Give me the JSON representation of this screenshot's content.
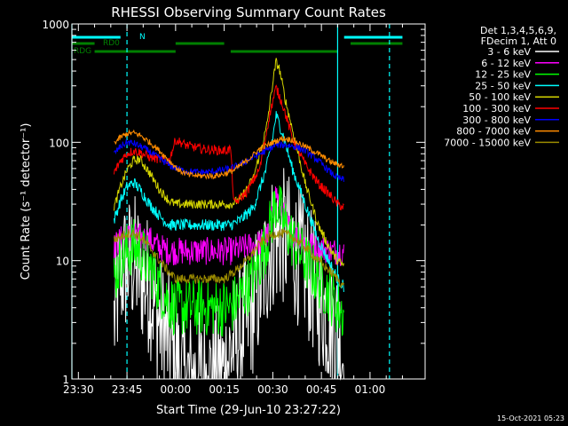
{
  "chart_data": {
    "type": "line",
    "title": "RHESSI Observing Summary Count Rates",
    "xlabel": "Start Time (29-Jun-10 23:27:22)",
    "ylabel": "Count Rate (s⁻¹ detector⁻¹)",
    "y_scale": "log",
    "ylim": [
      1,
      1000
    ],
    "xlim_minutes": [
      -32,
      77
    ],
    "x_ticks": [
      {
        "label": "23:30",
        "minute": -30
      },
      {
        "label": "23:45",
        "minute": -15
      },
      {
        "label": "00:00",
        "minute": 0
      },
      {
        "label": "00:15",
        "minute": 15
      },
      {
        "label": "00:30",
        "minute": 30
      },
      {
        "label": "00:45",
        "minute": 45
      },
      {
        "label": "01:00",
        "minute": 60
      }
    ],
    "y_ticks": [
      1,
      10,
      100,
      1000
    ],
    "y_tick_labels": [
      "1",
      "10",
      "100",
      "1000"
    ],
    "legend_header": [
      "Det 1,3,4,5,6,9,",
      "FDecim 1, Att 0"
    ],
    "legend_position": "right",
    "flags": [
      {
        "label": "N",
        "color": "#00ffff",
        "segments": [
          [
            -32,
            -17
          ],
          [
            52,
            70
          ]
        ]
      },
      {
        "label": "RD0",
        "color": "#008000",
        "segments": [
          [
            -32,
            -25
          ],
          [
            0,
            15
          ],
          [
            54,
            70
          ]
        ]
      },
      {
        "label": "RDG",
        "color": "#008000",
        "segments": [
          [
            -25,
            0
          ],
          [
            17,
            50
          ]
        ]
      }
    ],
    "vertical_markers": [
      {
        "minute": -32,
        "style": "solid",
        "color": "#00ffff"
      },
      {
        "minute": -15,
        "style": "dashed",
        "color": "#00ffff"
      },
      {
        "minute": 50,
        "style": "solid",
        "color": "#00ffff"
      },
      {
        "minute": 66,
        "style": "dashed",
        "color": "#00ffff"
      }
    ],
    "series": [
      {
        "name": "3 - 6 keV",
        "color": "#ffffff",
        "noise": 0.6,
        "points": [
          [
            -19,
            3
          ],
          [
            -17,
            8
          ],
          [
            -15,
            9
          ],
          [
            -13,
            10
          ],
          [
            -11,
            8
          ],
          [
            -8,
            6
          ],
          [
            -5,
            3
          ],
          [
            -2,
            2
          ],
          [
            0,
            1.5
          ],
          [
            2,
            1
          ],
          [
            5,
            1
          ],
          [
            10,
            1
          ],
          [
            15,
            1.2
          ],
          [
            18,
            2
          ],
          [
            22,
            3
          ],
          [
            26,
            6
          ],
          [
            30,
            15
          ],
          [
            33,
            16
          ],
          [
            36,
            13
          ],
          [
            40,
            9
          ],
          [
            44,
            5
          ],
          [
            48,
            3
          ],
          [
            50,
            2.5
          ],
          [
            52,
            1.5
          ]
        ]
      },
      {
        "name": "6 - 12 keV",
        "color": "#ff00ff",
        "noise": 0.12,
        "points": [
          [
            -19,
            13
          ],
          [
            -17,
            15
          ],
          [
            -15,
            16
          ],
          [
            -12,
            16
          ],
          [
            -8,
            15
          ],
          [
            -5,
            13
          ],
          [
            -2,
            12
          ],
          [
            0,
            12
          ],
          [
            3,
            12
          ],
          [
            8,
            12
          ],
          [
            12,
            12
          ],
          [
            15,
            12
          ],
          [
            17,
            12
          ],
          [
            22,
            13
          ],
          [
            26,
            14
          ],
          [
            29,
            17
          ],
          [
            31,
            38
          ],
          [
            33,
            25
          ],
          [
            36,
            17
          ],
          [
            40,
            14
          ],
          [
            44,
            13
          ],
          [
            48,
            12
          ],
          [
            50,
            12
          ],
          [
            52,
            12
          ]
        ]
      },
      {
        "name": "12 - 25 keV",
        "color": "#00ff00",
        "noise": 0.25,
        "points": [
          [
            -19,
            7
          ],
          [
            -17,
            10
          ],
          [
            -15,
            12
          ],
          [
            -13,
            13
          ],
          [
            -11,
            12
          ],
          [
            -8,
            9
          ],
          [
            -5,
            6
          ],
          [
            -2,
            4.5
          ],
          [
            0,
            4
          ],
          [
            3,
            4
          ],
          [
            8,
            4
          ],
          [
            12,
            4
          ],
          [
            15,
            4
          ],
          [
            17,
            4
          ],
          [
            20,
            5
          ],
          [
            24,
            7
          ],
          [
            28,
            14
          ],
          [
            31,
            32
          ],
          [
            33,
            22
          ],
          [
            36,
            15
          ],
          [
            40,
            10
          ],
          [
            44,
            7
          ],
          [
            48,
            5
          ],
          [
            50,
            4
          ],
          [
            52,
            3.5
          ]
        ]
      },
      {
        "name": "25 - 50 keV",
        "color": "#00ffff",
        "noise": 0.05,
        "points": [
          [
            -19,
            22
          ],
          [
            -17,
            32
          ],
          [
            -15,
            42
          ],
          [
            -13,
            46
          ],
          [
            -11,
            40
          ],
          [
            -8,
            30
          ],
          [
            -5,
            24
          ],
          [
            -2,
            20
          ],
          [
            0,
            20
          ],
          [
            3,
            20
          ],
          [
            8,
            20
          ],
          [
            12,
            20
          ],
          [
            15,
            20
          ],
          [
            17,
            20
          ],
          [
            20,
            22
          ],
          [
            24,
            28
          ],
          [
            28,
            60
          ],
          [
            30,
            110
          ],
          [
            31,
            170
          ],
          [
            33,
            120
          ],
          [
            36,
            60
          ],
          [
            40,
            30
          ],
          [
            44,
            15
          ],
          [
            48,
            9
          ],
          [
            50,
            7
          ],
          [
            52,
            6
          ]
        ]
      },
      {
        "name": "50 - 100 keV",
        "color": "#d4d400",
        "noise": 0.04,
        "points": [
          [
            -19,
            28
          ],
          [
            -17,
            42
          ],
          [
            -15,
            58
          ],
          [
            -13,
            70
          ],
          [
            -11,
            72
          ],
          [
            -8,
            55
          ],
          [
            -5,
            40
          ],
          [
            -2,
            32
          ],
          [
            0,
            30
          ],
          [
            3,
            30
          ],
          [
            8,
            30
          ],
          [
            12,
            30
          ],
          [
            15,
            30
          ],
          [
            17,
            30
          ],
          [
            20,
            33
          ],
          [
            24,
            50
          ],
          [
            28,
            130
          ],
          [
            30,
            320
          ],
          [
            31,
            480
          ],
          [
            32,
            420
          ],
          [
            34,
            220
          ],
          [
            37,
            100
          ],
          [
            40,
            45
          ],
          [
            44,
            20
          ],
          [
            48,
            12
          ],
          [
            50,
            10
          ],
          [
            52,
            9
          ]
        ]
      },
      {
        "name": "100 - 300 keV",
        "color": "#ff0000",
        "noise": 0.04,
        "points": [
          [
            -19,
            55
          ],
          [
            -17,
            70
          ],
          [
            -15,
            80
          ],
          [
            -13,
            85
          ],
          [
            -11,
            82
          ],
          [
            -8,
            75
          ],
          [
            -5,
            72
          ],
          [
            -2,
            70
          ],
          [
            0,
            105
          ],
          [
            3,
            95
          ],
          [
            8,
            88
          ],
          [
            12,
            86
          ],
          [
            15,
            85
          ],
          [
            17,
            88
          ],
          [
            18,
            30
          ],
          [
            22,
            38
          ],
          [
            26,
            60
          ],
          [
            29,
            170
          ],
          [
            31,
            290
          ],
          [
            33,
            210
          ],
          [
            36,
            110
          ],
          [
            40,
            65
          ],
          [
            44,
            45
          ],
          [
            48,
            35
          ],
          [
            50,
            30
          ],
          [
            52,
            28
          ]
        ]
      },
      {
        "name": "300 - 800 keV",
        "color": "#0000ff",
        "noise": 0.03,
        "points": [
          [
            -19,
            80
          ],
          [
            -17,
            92
          ],
          [
            -15,
            100
          ],
          [
            -13,
            98
          ],
          [
            -10,
            90
          ],
          [
            -7,
            80
          ],
          [
            -4,
            70
          ],
          [
            -1,
            62
          ],
          [
            2,
            58
          ],
          [
            6,
            56
          ],
          [
            10,
            56
          ],
          [
            14,
            58
          ],
          [
            17,
            60
          ],
          [
            20,
            65
          ],
          [
            24,
            75
          ],
          [
            28,
            85
          ],
          [
            31,
            95
          ],
          [
            34,
            95
          ],
          [
            37,
            92
          ],
          [
            40,
            85
          ],
          [
            44,
            70
          ],
          [
            48,
            55
          ],
          [
            50,
            50
          ],
          [
            52,
            48
          ]
        ]
      },
      {
        "name": "800 - 7000 keV",
        "color": "#ff8c00",
        "noise": 0.025,
        "points": [
          [
            -19,
            98
          ],
          [
            -17,
            110
          ],
          [
            -15,
            118
          ],
          [
            -13,
            120
          ],
          [
            -11,
            115
          ],
          [
            -8,
            100
          ],
          [
            -5,
            85
          ],
          [
            -2,
            70
          ],
          [
            1,
            58
          ],
          [
            4,
            53
          ],
          [
            8,
            52
          ],
          [
            12,
            52
          ],
          [
            15,
            54
          ],
          [
            18,
            58
          ],
          [
            22,
            70
          ],
          [
            26,
            88
          ],
          [
            30,
            100
          ],
          [
            33,
            108
          ],
          [
            36,
            105
          ],
          [
            40,
            92
          ],
          [
            44,
            80
          ],
          [
            48,
            68
          ],
          [
            50,
            65
          ],
          [
            52,
            63
          ]
        ]
      },
      {
        "name": "7000 - 15000 keV",
        "color": "#9b8b00",
        "noise": 0.04,
        "points": [
          [
            -19,
            15
          ],
          [
            -17,
            16
          ],
          [
            -15,
            17
          ],
          [
            -13,
            17
          ],
          [
            -11,
            16
          ],
          [
            -8,
            13
          ],
          [
            -5,
            10
          ],
          [
            -2,
            8
          ],
          [
            0,
            7
          ],
          [
            3,
            7
          ],
          [
            8,
            7
          ],
          [
            12,
            7
          ],
          [
            15,
            7
          ],
          [
            18,
            8
          ],
          [
            22,
            10
          ],
          [
            26,
            14
          ],
          [
            29,
            16
          ],
          [
            31,
            17
          ],
          [
            33,
            17
          ],
          [
            36,
            16
          ],
          [
            40,
            13
          ],
          [
            44,
            10
          ],
          [
            48,
            8
          ],
          [
            50,
            7
          ],
          [
            52,
            6
          ]
        ]
      }
    ]
  },
  "timestamp": "15-Oct-2021 05:23"
}
